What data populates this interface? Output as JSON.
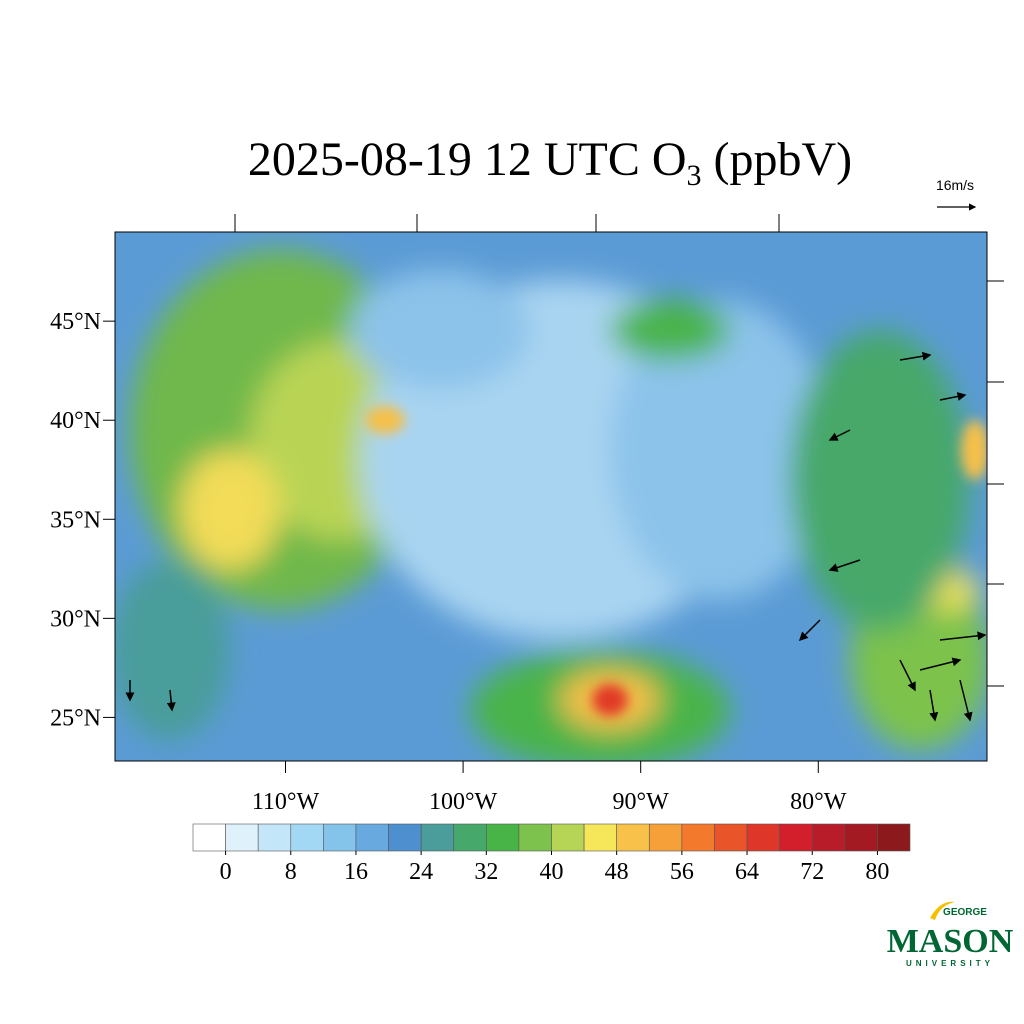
{
  "map": {
    "title": "2025-08-19 12 UTC O",
    "title_subscript": "3",
    "title_units": "(ppbV)",
    "vector_reference": "16m/s",
    "lon_ticks": [
      {
        "value": -110,
        "label": "110°W"
      },
      {
        "value": -100,
        "label": "100°W"
      },
      {
        "value": -90,
        "label": "90°W"
      },
      {
        "value": -80,
        "label": "80°W"
      }
    ],
    "lat_ticks": [
      {
        "value": 45,
        "label": "45°N"
      },
      {
        "value": 40,
        "label": "40°N"
      },
      {
        "value": 35,
        "label": "35°N"
      },
      {
        "value": 30,
        "label": "30°N"
      },
      {
        "value": 25,
        "label": "25°N"
      }
    ],
    "lonlim": [
      -119.6,
      -70.5
    ],
    "latlim": [
      22.8,
      49.5
    ]
  },
  "colorbar": {
    "range": [
      -4,
      84
    ],
    "ticks": [
      0,
      8,
      16,
      24,
      32,
      40,
      48,
      56,
      64,
      72,
      80
    ],
    "colors": [
      "#ffffff",
      "#dff1fb",
      "#c3e6f8",
      "#a3d8f4",
      "#84c3ea",
      "#68aadf",
      "#4d8fcf",
      "#4a9d9a",
      "#46a86a",
      "#48b448",
      "#7cc24c",
      "#b6d455",
      "#f6e65a",
      "#f8c24a",
      "#f6a03a",
      "#f37a2c",
      "#ea5429",
      "#de3628",
      "#d21f2b",
      "#b81c28",
      "#a31a23",
      "#8c1a1c"
    ]
  },
  "logo": {
    "top": "GEORGE",
    "main": "MASON",
    "bottom": "UNIVERSITY"
  }
}
